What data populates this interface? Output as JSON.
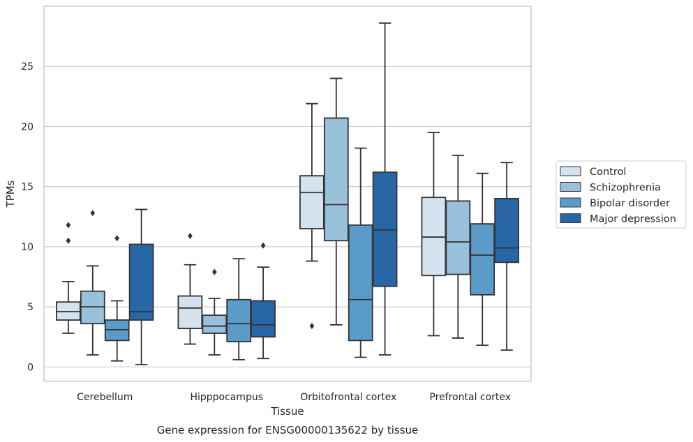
{
  "chart_data": {
    "type": "box",
    "caption": "Gene expression for ENSG00000135622 by tissue",
    "xlabel": "Tissue",
    "ylabel": "TPMs",
    "ylim": [
      -1.2,
      30
    ],
    "yticks": [
      0,
      5,
      10,
      15,
      20,
      25
    ],
    "grid": "y",
    "legend_position": "right",
    "categories": [
      "Cerebellum",
      "Hipppocampus",
      "Orbitofrontal cortex",
      "Prefrontal cortex"
    ],
    "series": [
      {
        "name": "Control",
        "color": "#d5e3f1",
        "boxes": [
          {
            "whisker_low": 2.8,
            "q1": 3.9,
            "median": 4.6,
            "q3": 5.4,
            "whisker_high": 7.1,
            "outliers": [
              10.5,
              11.8
            ]
          },
          {
            "whisker_low": 1.9,
            "q1": 3.2,
            "median": 4.9,
            "q3": 5.9,
            "whisker_high": 8.5,
            "outliers": [
              10.9
            ]
          },
          {
            "whisker_low": 8.8,
            "q1": 11.5,
            "median": 14.5,
            "q3": 15.9,
            "whisker_high": 21.9,
            "outliers": [
              3.4
            ]
          },
          {
            "whisker_low": 2.6,
            "q1": 7.6,
            "median": 10.8,
            "q3": 14.1,
            "whisker_high": 19.5,
            "outliers": []
          }
        ]
      },
      {
        "name": "Schizophrenia",
        "color": "#9ac1dc",
        "boxes": [
          {
            "whisker_low": 1.0,
            "q1": 3.6,
            "median": 5.0,
            "q3": 6.3,
            "whisker_high": 8.4,
            "outliers": [
              12.8
            ]
          },
          {
            "whisker_low": 1.0,
            "q1": 2.8,
            "median": 3.4,
            "q3": 4.3,
            "whisker_high": 5.7,
            "outliers": [
              7.9
            ]
          },
          {
            "whisker_low": 3.5,
            "q1": 10.5,
            "median": 13.5,
            "q3": 20.7,
            "whisker_high": 24.0,
            "outliers": []
          },
          {
            "whisker_low": 2.4,
            "q1": 7.7,
            "median": 10.4,
            "q3": 13.8,
            "whisker_high": 17.6,
            "outliers": []
          }
        ]
      },
      {
        "name": "Bipolar disorder",
        "color": "#5a9bc9",
        "boxes": [
          {
            "whisker_low": 0.5,
            "q1": 2.2,
            "median": 3.1,
            "q3": 3.9,
            "whisker_high": 5.5,
            "outliers": [
              10.7
            ]
          },
          {
            "whisker_low": 0.6,
            "q1": 2.1,
            "median": 3.6,
            "q3": 5.6,
            "whisker_high": 9.0,
            "outliers": []
          },
          {
            "whisker_low": 0.8,
            "q1": 2.2,
            "median": 5.6,
            "q3": 11.8,
            "whisker_high": 18.2,
            "outliers": []
          },
          {
            "whisker_low": 1.8,
            "q1": 6.0,
            "median": 9.3,
            "q3": 11.9,
            "whisker_high": 16.1,
            "outliers": []
          }
        ]
      },
      {
        "name": "Major depression",
        "color": "#2866a6",
        "boxes": [
          {
            "whisker_low": 0.2,
            "q1": 3.9,
            "median": 4.6,
            "q3": 10.2,
            "whisker_high": 13.1,
            "outliers": []
          },
          {
            "whisker_low": 0.7,
            "q1": 2.5,
            "median": 3.5,
            "q3": 5.5,
            "whisker_high": 8.3,
            "outliers": [
              10.1
            ]
          },
          {
            "whisker_low": 1.0,
            "q1": 6.7,
            "median": 11.4,
            "q3": 16.2,
            "whisker_high": 28.6,
            "outliers": []
          },
          {
            "whisker_low": 1.4,
            "q1": 8.7,
            "median": 9.9,
            "q3": 14.0,
            "whisker_high": 17.0,
            "outliers": []
          }
        ]
      }
    ]
  }
}
